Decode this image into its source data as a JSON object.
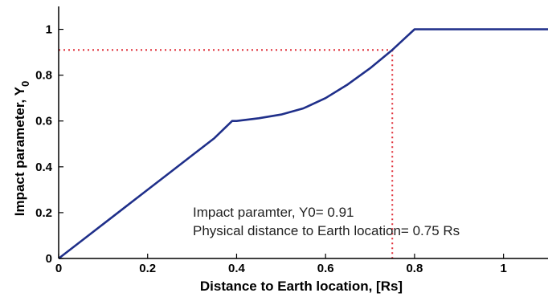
{
  "chart_data": {
    "type": "line",
    "title": "",
    "xlabel": "Distance to Earth location, [Rs]",
    "ylabel": "Impact parameter, Y",
    "ylabel_subscript": "0",
    "xlim": [
      0,
      1.1
    ],
    "ylim": [
      0,
      1.1
    ],
    "x_ticks": [
      0,
      0.2,
      0.4,
      0.6,
      0.8,
      1
    ],
    "x_tick_labels": [
      "0",
      "0.2",
      "0.4",
      "0.6",
      "0.8",
      "1"
    ],
    "y_ticks": [
      0,
      0.2,
      0.4,
      0.6,
      0.8,
      1
    ],
    "y_tick_labels": [
      "0",
      "0.2",
      "0.4",
      "0.6",
      "0.8",
      "1"
    ],
    "grid": false,
    "series": [
      {
        "color": "#1f2f8a",
        "x": [
          0,
          0.05,
          0.1,
          0.15,
          0.2,
          0.25,
          0.3,
          0.35,
          0.39,
          0.4,
          0.45,
          0.5,
          0.55,
          0.6,
          0.65,
          0.7,
          0.75,
          0.8,
          0.85,
          0.9,
          0.95,
          1.0,
          1.05,
          1.1
        ],
        "y": [
          0,
          0.075,
          0.15,
          0.225,
          0.3,
          0.375,
          0.45,
          0.525,
          0.6,
          0.6,
          0.612,
          0.628,
          0.655,
          0.7,
          0.76,
          0.83,
          0.91,
          1.0,
          1.0,
          1.0,
          1.0,
          1.0,
          1.0,
          1.0
        ]
      }
    ],
    "reference_lines": {
      "color": "#e0303a",
      "x": 0.75,
      "y": 0.91
    },
    "annotations": [
      "Impact paramter, Y0= 0.91",
      "Physical distance to Earth location= 0.75 Rs"
    ]
  }
}
